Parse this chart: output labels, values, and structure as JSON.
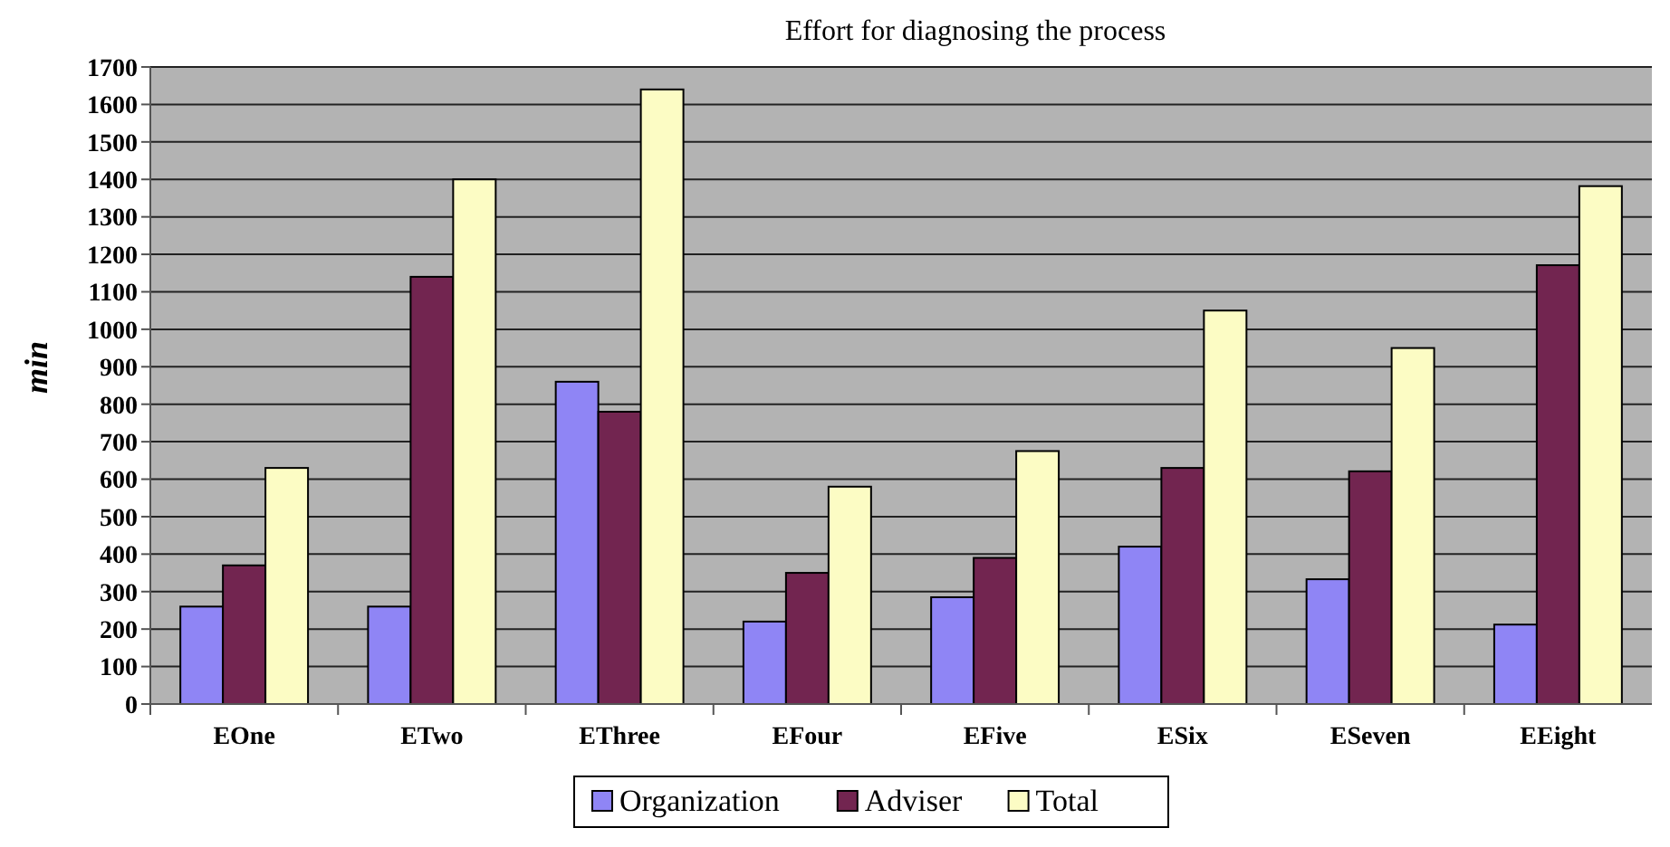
{
  "chart_data": {
    "type": "bar",
    "title": "Effort for diagnosing the process",
    "ylabel": "min",
    "categories": [
      "EOne",
      "ETwo",
      "EThree",
      "EFour",
      "EFive",
      "ESix",
      "ESeven",
      "EEight"
    ],
    "series": [
      {
        "name": "Organization",
        "color": "#8f85f5",
        "values": [
          260,
          260,
          860,
          220,
          285,
          420,
          333,
          212
        ]
      },
      {
        "name": "Adviser",
        "color": "#722550",
        "values": [
          370,
          1140,
          780,
          350,
          390,
          630,
          621,
          1171
        ]
      },
      {
        "name": "Total",
        "color": "#fcfcc4",
        "values": [
          630,
          1400,
          1640,
          580,
          675,
          1050,
          950,
          1382
        ]
      }
    ],
    "ylim": [
      0,
      1700
    ],
    "yticks": [
      0,
      100,
      200,
      300,
      400,
      500,
      600,
      700,
      800,
      900,
      1000,
      1100,
      1200,
      1300,
      1400,
      1500,
      1600,
      1700
    ],
    "grid": "y",
    "legend": "bottom"
  }
}
